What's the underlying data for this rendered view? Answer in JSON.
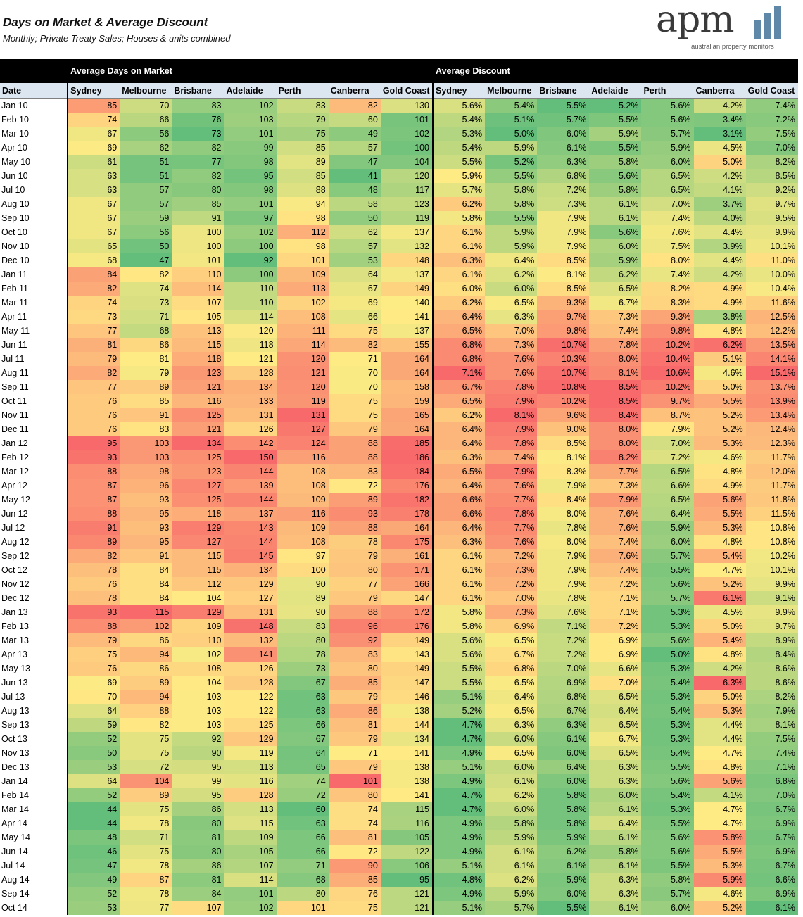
{
  "chart_data": {
    "type": "table",
    "title": "Days on Market & Average Discount",
    "subtitle": "Monthly; Private Treaty Sales; Houses & units combined",
    "groups": [
      "Average Days on Market",
      "Average Discount"
    ],
    "date_header": "Date",
    "cities": [
      "Sydney",
      "Melbourne",
      "Brisbane",
      "Adelaide",
      "Perth",
      "Canberra",
      "Gold Coast"
    ],
    "colors": {
      "low": "#63be7b",
      "mid": "#ffeb84",
      "high": "#f8696b"
    },
    "rows": [
      {
        "date": "Jan 10",
        "days": [
          85,
          70,
          83,
          102,
          83,
          82,
          130
        ],
        "disc": [
          "5.6%",
          "5.4%",
          "5.5%",
          "5.2%",
          "5.6%",
          "4.2%",
          "7.4%"
        ]
      },
      {
        "date": "Feb 10",
        "days": [
          74,
          66,
          76,
          103,
          79,
          60,
          101
        ],
        "disc": [
          "5.4%",
          "5.1%",
          "5.7%",
          "5.5%",
          "5.6%",
          "3.4%",
          "7.2%"
        ]
      },
      {
        "date": "Mar 10",
        "days": [
          67,
          56,
          73,
          101,
          75,
          49,
          102
        ],
        "disc": [
          "5.3%",
          "5.0%",
          "6.0%",
          "5.9%",
          "5.7%",
          "3.1%",
          "7.5%"
        ]
      },
      {
        "date": "Apr 10",
        "days": [
          69,
          62,
          82,
          99,
          85,
          57,
          100
        ],
        "disc": [
          "5.4%",
          "5.9%",
          "6.1%",
          "5.5%",
          "5.9%",
          "4.5%",
          "7.0%"
        ]
      },
      {
        "date": "May 10",
        "days": [
          61,
          51,
          77,
          98,
          89,
          47,
          104
        ],
        "disc": [
          "5.5%",
          "5.2%",
          "6.3%",
          "5.8%",
          "6.0%",
          "5.0%",
          "8.2%"
        ]
      },
      {
        "date": "Jun 10",
        "days": [
          63,
          51,
          82,
          95,
          85,
          41,
          120
        ],
        "disc": [
          "5.9%",
          "5.5%",
          "6.8%",
          "5.6%",
          "6.5%",
          "4.2%",
          "8.5%"
        ]
      },
      {
        "date": "Jul 10",
        "days": [
          63,
          57,
          80,
          98,
          88,
          48,
          117
        ],
        "disc": [
          "5.7%",
          "5.8%",
          "7.2%",
          "5.8%",
          "6.5%",
          "4.1%",
          "9.2%"
        ]
      },
      {
        "date": "Aug 10",
        "days": [
          67,
          57,
          85,
          101,
          94,
          58,
          123
        ],
        "disc": [
          "6.2%",
          "5.8%",
          "7.3%",
          "6.1%",
          "7.0%",
          "3.7%",
          "9.7%"
        ]
      },
      {
        "date": "Sep 10",
        "days": [
          67,
          59,
          91,
          97,
          98,
          50,
          119
        ],
        "disc": [
          "5.8%",
          "5.5%",
          "7.9%",
          "6.1%",
          "7.4%",
          "4.0%",
          "9.5%"
        ]
      },
      {
        "date": "Oct 10",
        "days": [
          67,
          56,
          100,
          102,
          112,
          62,
          137
        ],
        "disc": [
          "6.1%",
          "5.9%",
          "7.9%",
          "5.6%",
          "7.6%",
          "4.4%",
          "9.9%"
        ]
      },
      {
        "date": "Nov 10",
        "days": [
          65,
          50,
          100,
          100,
          98,
          57,
          132
        ],
        "disc": [
          "6.1%",
          "5.9%",
          "7.9%",
          "6.0%",
          "7.5%",
          "3.9%",
          "10.1%"
        ]
      },
      {
        "date": "Dec 10",
        "days": [
          68,
          47,
          101,
          92,
          101,
          53,
          148
        ],
        "disc": [
          "6.3%",
          "6.4%",
          "8.5%",
          "5.9%",
          "8.0%",
          "4.4%",
          "11.0%"
        ]
      },
      {
        "date": "Jan 11",
        "days": [
          84,
          82,
          110,
          100,
          109,
          64,
          137
        ],
        "disc": [
          "6.1%",
          "6.2%",
          "8.1%",
          "6.2%",
          "7.4%",
          "4.2%",
          "10.0%"
        ]
      },
      {
        "date": "Feb 11",
        "days": [
          82,
          74,
          114,
          110,
          113,
          67,
          149
        ],
        "disc": [
          "6.0%",
          "6.0%",
          "8.5%",
          "6.5%",
          "8.2%",
          "4.9%",
          "10.4%"
        ]
      },
      {
        "date": "Mar 11",
        "days": [
          74,
          73,
          107,
          110,
          102,
          69,
          140
        ],
        "disc": [
          "6.2%",
          "6.5%",
          "9.3%",
          "6.7%",
          "8.3%",
          "4.9%",
          "11.6%"
        ]
      },
      {
        "date": "Apr 11",
        "days": [
          73,
          71,
          105,
          114,
          108,
          66,
          141
        ],
        "disc": [
          "6.4%",
          "6.3%",
          "9.7%",
          "7.3%",
          "9.3%",
          "3.8%",
          "12.5%"
        ]
      },
      {
        "date": "May 11",
        "days": [
          77,
          68,
          113,
          120,
          111,
          75,
          137
        ],
        "disc": [
          "6.5%",
          "7.0%",
          "9.8%",
          "7.4%",
          "9.8%",
          "4.8%",
          "12.2%"
        ]
      },
      {
        "date": "Jun 11",
        "days": [
          81,
          86,
          115,
          118,
          114,
          82,
          155
        ],
        "disc": [
          "6.8%",
          "7.3%",
          "10.7%",
          "7.8%",
          "10.2%",
          "6.2%",
          "13.5%"
        ]
      },
      {
        "date": "Jul 11",
        "days": [
          79,
          81,
          118,
          121,
          120,
          71,
          164
        ],
        "disc": [
          "6.8%",
          "7.6%",
          "10.3%",
          "8.0%",
          "10.4%",
          "5.1%",
          "14.1%"
        ]
      },
      {
        "date": "Aug 11",
        "days": [
          82,
          79,
          123,
          128,
          121,
          70,
          164
        ],
        "disc": [
          "7.1%",
          "7.6%",
          "10.7%",
          "8.1%",
          "10.6%",
          "4.6%",
          "15.1%"
        ]
      },
      {
        "date": "Sep 11",
        "days": [
          77,
          89,
          121,
          134,
          120,
          70,
          158
        ],
        "disc": [
          "6.7%",
          "7.8%",
          "10.8%",
          "8.5%",
          "10.2%",
          "5.0%",
          "13.7%"
        ]
      },
      {
        "date": "Oct 11",
        "days": [
          76,
          85,
          116,
          133,
          119,
          75,
          159
        ],
        "disc": [
          "6.5%",
          "7.9%",
          "10.2%",
          "8.5%",
          "9.7%",
          "5.5%",
          "13.9%"
        ]
      },
      {
        "date": "Nov 11",
        "days": [
          76,
          91,
          125,
          131,
          131,
          75,
          165
        ],
        "disc": [
          "6.2%",
          "8.1%",
          "9.6%",
          "8.4%",
          "8.7%",
          "5.2%",
          "13.4%"
        ]
      },
      {
        "date": "Dec 11",
        "days": [
          76,
          83,
          121,
          126,
          127,
          79,
          164
        ],
        "disc": [
          "6.4%",
          "7.9%",
          "9.0%",
          "8.0%",
          "7.9%",
          "5.2%",
          "12.4%"
        ]
      },
      {
        "date": "Jan 12",
        "days": [
          95,
          103,
          134,
          142,
          124,
          88,
          185
        ],
        "disc": [
          "6.4%",
          "7.8%",
          "8.5%",
          "8.0%",
          "7.0%",
          "5.3%",
          "12.3%"
        ]
      },
      {
        "date": "Feb 12",
        "days": [
          93,
          103,
          125,
          150,
          116,
          88,
          186
        ],
        "disc": [
          "6.3%",
          "7.4%",
          "8.1%",
          "8.2%",
          "7.2%",
          "4.6%",
          "11.7%"
        ]
      },
      {
        "date": "Mar 12",
        "days": [
          88,
          98,
          123,
          144,
          108,
          83,
          184
        ],
        "disc": [
          "6.5%",
          "7.9%",
          "8.3%",
          "7.7%",
          "6.5%",
          "4.8%",
          "12.0%"
        ]
      },
      {
        "date": "Apr 12",
        "days": [
          87,
          96,
          127,
          139,
          108,
          72,
          176
        ],
        "disc": [
          "6.4%",
          "7.6%",
          "7.9%",
          "7.3%",
          "6.6%",
          "4.9%",
          "11.7%"
        ]
      },
      {
        "date": "May 12",
        "days": [
          87,
          93,
          125,
          144,
          109,
          89,
          182
        ],
        "disc": [
          "6.6%",
          "7.7%",
          "8.4%",
          "7.9%",
          "6.5%",
          "5.6%",
          "11.8%"
        ]
      },
      {
        "date": "Jun 12",
        "days": [
          88,
          95,
          118,
          137,
          116,
          93,
          178
        ],
        "disc": [
          "6.6%",
          "7.8%",
          "8.0%",
          "7.6%",
          "6.4%",
          "5.5%",
          "11.5%"
        ]
      },
      {
        "date": "Jul 12",
        "days": [
          91,
          93,
          129,
          143,
          109,
          88,
          164
        ],
        "disc": [
          "6.4%",
          "7.7%",
          "7.8%",
          "7.6%",
          "5.9%",
          "5.3%",
          "10.8%"
        ]
      },
      {
        "date": "Aug 12",
        "days": [
          89,
          95,
          127,
          144,
          108,
          78,
          175
        ],
        "disc": [
          "6.3%",
          "7.6%",
          "8.0%",
          "7.4%",
          "6.0%",
          "4.8%",
          "10.8%"
        ]
      },
      {
        "date": "Sep 12",
        "days": [
          82,
          91,
          115,
          145,
          97,
          79,
          161
        ],
        "disc": [
          "6.1%",
          "7.2%",
          "7.9%",
          "7.6%",
          "5.7%",
          "5.4%",
          "10.2%"
        ]
      },
      {
        "date": "Oct 12",
        "days": [
          78,
          84,
          115,
          134,
          100,
          80,
          171
        ],
        "disc": [
          "6.1%",
          "7.3%",
          "7.9%",
          "7.4%",
          "5.5%",
          "4.7%",
          "10.1%"
        ]
      },
      {
        "date": "Nov 12",
        "days": [
          76,
          84,
          112,
          129,
          90,
          77,
          166
        ],
        "disc": [
          "6.1%",
          "7.2%",
          "7.9%",
          "7.2%",
          "5.6%",
          "5.2%",
          "9.9%"
        ]
      },
      {
        "date": "Dec 12",
        "days": [
          78,
          84,
          104,
          127,
          89,
          79,
          147
        ],
        "disc": [
          "6.1%",
          "7.0%",
          "7.8%",
          "7.1%",
          "5.7%",
          "6.1%",
          "9.1%"
        ]
      },
      {
        "date": "Jan 13",
        "days": [
          93,
          115,
          129,
          131,
          90,
          88,
          172
        ],
        "disc": [
          "5.8%",
          "7.3%",
          "7.6%",
          "7.1%",
          "5.3%",
          "4.5%",
          "9.9%"
        ]
      },
      {
        "date": "Feb 13",
        "days": [
          88,
          102,
          109,
          148,
          83,
          96,
          176
        ],
        "disc": [
          "5.8%",
          "6.9%",
          "7.1%",
          "7.2%",
          "5.3%",
          "5.0%",
          "9.7%"
        ]
      },
      {
        "date": "Mar 13",
        "days": [
          79,
          86,
          110,
          132,
          80,
          92,
          149
        ],
        "disc": [
          "5.6%",
          "6.5%",
          "7.2%",
          "6.9%",
          "5.6%",
          "5.4%",
          "8.9%"
        ]
      },
      {
        "date": "Apr 13",
        "days": [
          75,
          94,
          102,
          141,
          78,
          83,
          143
        ],
        "disc": [
          "5.6%",
          "6.7%",
          "7.2%",
          "6.9%",
          "5.0%",
          "4.8%",
          "8.4%"
        ]
      },
      {
        "date": "May 13",
        "days": [
          76,
          86,
          108,
          126,
          73,
          80,
          149
        ],
        "disc": [
          "5.5%",
          "6.8%",
          "7.0%",
          "6.6%",
          "5.3%",
          "4.2%",
          "8.6%"
        ]
      },
      {
        "date": "Jun 13",
        "days": [
          69,
          89,
          104,
          128,
          67,
          85,
          147
        ],
        "disc": [
          "5.5%",
          "6.5%",
          "6.9%",
          "7.0%",
          "5.4%",
          "6.3%",
          "8.6%"
        ]
      },
      {
        "date": "Jul 13",
        "days": [
          70,
          94,
          103,
          122,
          63,
          79,
          146
        ],
        "disc": [
          "5.1%",
          "6.4%",
          "6.8%",
          "6.5%",
          "5.3%",
          "5.0%",
          "8.2%"
        ]
      },
      {
        "date": "Aug 13",
        "days": [
          64,
          88,
          103,
          122,
          63,
          86,
          138
        ],
        "disc": [
          "5.2%",
          "6.5%",
          "6.7%",
          "6.4%",
          "5.4%",
          "5.3%",
          "7.9%"
        ]
      },
      {
        "date": "Sep 13",
        "days": [
          59,
          82,
          103,
          125,
          66,
          81,
          144
        ],
        "disc": [
          "4.7%",
          "6.3%",
          "6.3%",
          "6.5%",
          "5.3%",
          "4.4%",
          "8.1%"
        ]
      },
      {
        "date": "Oct 13",
        "days": [
          52,
          75,
          92,
          129,
          67,
          79,
          134
        ],
        "disc": [
          "4.7%",
          "6.0%",
          "6.1%",
          "6.7%",
          "5.3%",
          "4.4%",
          "7.5%"
        ]
      },
      {
        "date": "Nov 13",
        "days": [
          50,
          75,
          90,
          119,
          64,
          71,
          141
        ],
        "disc": [
          "4.9%",
          "6.5%",
          "6.0%",
          "6.5%",
          "5.4%",
          "4.7%",
          "7.4%"
        ]
      },
      {
        "date": "Dec 13",
        "days": [
          53,
          72,
          95,
          113,
          65,
          79,
          138
        ],
        "disc": [
          "5.1%",
          "6.0%",
          "6.4%",
          "6.3%",
          "5.5%",
          "4.8%",
          "7.1%"
        ]
      },
      {
        "date": "Jan 14",
        "days": [
          64,
          104,
          99,
          116,
          74,
          101,
          138
        ],
        "disc": [
          "4.9%",
          "6.1%",
          "6.0%",
          "6.3%",
          "5.6%",
          "5.6%",
          "6.8%"
        ]
      },
      {
        "date": "Feb 14",
        "days": [
          52,
          89,
          95,
          128,
          72,
          80,
          141
        ],
        "disc": [
          "4.7%",
          "6.2%",
          "5.8%",
          "6.0%",
          "5.4%",
          "4.1%",
          "7.0%"
        ]
      },
      {
        "date": "Mar 14",
        "days": [
          44,
          75,
          86,
          113,
          60,
          74,
          115
        ],
        "disc": [
          "4.7%",
          "6.0%",
          "5.8%",
          "6.1%",
          "5.3%",
          "4.7%",
          "6.7%"
        ]
      },
      {
        "date": "Apr 14",
        "days": [
          44,
          78,
          80,
          115,
          63,
          74,
          116
        ],
        "disc": [
          "4.9%",
          "5.8%",
          "5.8%",
          "6.4%",
          "5.5%",
          "4.7%",
          "6.9%"
        ]
      },
      {
        "date": "May 14",
        "days": [
          48,
          71,
          81,
          109,
          66,
          81,
          105
        ],
        "disc": [
          "4.9%",
          "5.9%",
          "5.9%",
          "6.1%",
          "5.6%",
          "5.8%",
          "6.7%"
        ]
      },
      {
        "date": "Jun 14",
        "days": [
          46,
          75,
          80,
          105,
          66,
          72,
          122
        ],
        "disc": [
          "4.9%",
          "6.1%",
          "6.2%",
          "5.8%",
          "5.6%",
          "5.5%",
          "6.9%"
        ]
      },
      {
        "date": "Jul 14",
        "days": [
          47,
          78,
          86,
          107,
          71,
          90,
          106
        ],
        "disc": [
          "5.1%",
          "6.1%",
          "6.1%",
          "6.1%",
          "5.5%",
          "5.3%",
          "6.7%"
        ]
      },
      {
        "date": "Aug 14",
        "days": [
          49,
          87,
          81,
          114,
          68,
          85,
          95
        ],
        "disc": [
          "4.8%",
          "6.2%",
          "5.9%",
          "6.3%",
          "5.8%",
          "5.9%",
          "6.6%"
        ]
      },
      {
        "date": "Sep 14",
        "days": [
          52,
          78,
          84,
          101,
          80,
          76,
          121
        ],
        "disc": [
          "4.9%",
          "5.9%",
          "6.0%",
          "6.3%",
          "5.7%",
          "4.6%",
          "6.9%"
        ]
      },
      {
        "date": "Oct 14",
        "days": [
          53,
          77,
          107,
          102,
          101,
          75,
          121
        ],
        "disc": [
          "5.1%",
          "5.7%",
          "5.5%",
          "6.1%",
          "6.0%",
          "5.2%",
          "6.1%"
        ]
      }
    ]
  },
  "logo": {
    "text": "apm",
    "tagline": "australian property monitors",
    "color": "#5f87a8"
  }
}
